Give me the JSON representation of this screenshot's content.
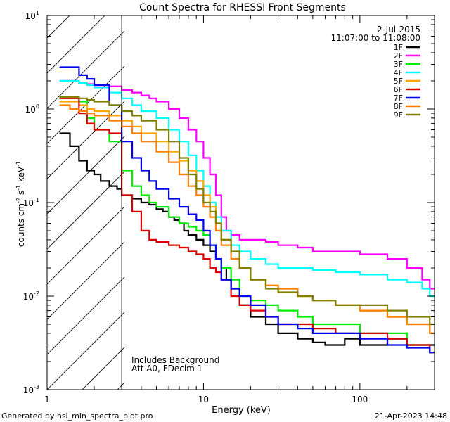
{
  "chart_data": {
    "type": "line",
    "title": "Count Spectra for RHESSI Front Segments",
    "xlabel": "Energy (keV)",
    "ylabel_base": "counts cm",
    "ylabel_units": [
      "-2",
      " s",
      "-1",
      " keV",
      "-1"
    ],
    "x_scale": "log",
    "y_scale": "log",
    "xlim": [
      1,
      300
    ],
    "ylim": [
      0.001,
      10
    ],
    "x_ticks": [
      {
        "value": 1,
        "label": "1"
      },
      {
        "value": 10,
        "label": "10"
      },
      {
        "value": 100,
        "label": "100"
      }
    ],
    "y_ticks": [
      {
        "value": 10,
        "base": "10",
        "exp": "1"
      },
      {
        "value": 1,
        "base": "10",
        "exp": "0"
      },
      {
        "value": 0.1,
        "base": "10",
        "exp": "-1"
      },
      {
        "value": 0.01,
        "base": "10",
        "exp": "-2"
      },
      {
        "value": 0.001,
        "base": "10",
        "exp": "-3"
      }
    ],
    "hatched_region": {
      "x_from": 1,
      "x_to": 3,
      "meaning": "excluded low energy"
    },
    "date": "2-Jul-2015",
    "time_range": "11:07:00 to 11:08:00",
    "annotations": [
      "Includes Background",
      "Att A0, FDecim 1"
    ],
    "footer_left": "Generated by hsi_min_spectra_plot.pro",
    "footer_right": "21-Apr-2023 14:48",
    "series": [
      {
        "name": "1F",
        "color": "#000000",
        "points": [
          [
            1.2,
            0.55
          ],
          [
            1.4,
            0.4
          ],
          [
            1.6,
            0.28
          ],
          [
            1.8,
            0.22
          ],
          [
            2.0,
            0.2
          ],
          [
            2.2,
            0.17
          ],
          [
            2.5,
            0.15
          ],
          [
            2.8,
            0.14
          ],
          [
            3.0,
            0.12
          ],
          [
            3.5,
            0.11
          ],
          [
            4,
            0.1
          ],
          [
            4.5,
            0.095
          ],
          [
            5,
            0.085
          ],
          [
            5.5,
            0.08
          ],
          [
            6,
            0.07
          ],
          [
            6.5,
            0.065
          ],
          [
            7,
            0.06
          ],
          [
            7.5,
            0.05
          ],
          [
            8,
            0.045
          ],
          [
            9,
            0.04
          ],
          [
            10,
            0.035
          ],
          [
            11,
            0.03
          ],
          [
            12,
            0.025
          ],
          [
            13,
            0.02
          ],
          [
            14,
            0.015
          ],
          [
            15,
            0.012
          ],
          [
            17,
            0.008
          ],
          [
            20,
            0.006
          ],
          [
            25,
            0.005
          ],
          [
            30,
            0.004
          ],
          [
            40,
            0.0035
          ],
          [
            50,
            0.0032
          ],
          [
            60,
            0.003
          ],
          [
            80,
            0.0035
          ],
          [
            100,
            0.003
          ],
          [
            150,
            0.0035
          ],
          [
            200,
            0.003
          ],
          [
            280,
            0.003
          ]
        ]
      },
      {
        "name": "2F",
        "color": "#ff00ff",
        "points": [
          [
            1.2,
            2.0
          ],
          [
            1.4,
            2.0
          ],
          [
            1.6,
            1.9
          ],
          [
            1.8,
            1.85
          ],
          [
            2.0,
            1.8
          ],
          [
            2.5,
            1.75
          ],
          [
            3.0,
            1.6
          ],
          [
            3.5,
            1.5
          ],
          [
            4,
            1.4
          ],
          [
            4.5,
            1.3
          ],
          [
            5,
            1.2
          ],
          [
            6,
            1.0
          ],
          [
            7,
            0.8
          ],
          [
            8,
            0.6
          ],
          [
            9,
            0.45
          ],
          [
            10,
            0.3
          ],
          [
            11,
            0.2
          ],
          [
            12,
            0.12
          ],
          [
            13,
            0.07
          ],
          [
            14,
            0.05
          ],
          [
            15,
            0.045
          ],
          [
            17,
            0.04
          ],
          [
            20,
            0.04
          ],
          [
            25,
            0.038
          ],
          [
            30,
            0.035
          ],
          [
            40,
            0.033
          ],
          [
            50,
            0.03
          ],
          [
            70,
            0.03
          ],
          [
            100,
            0.028
          ],
          [
            150,
            0.025
          ],
          [
            200,
            0.02
          ],
          [
            250,
            0.015
          ],
          [
            280,
            0.012
          ]
        ]
      },
      {
        "name": "3F",
        "color": "#00ee00",
        "points": [
          [
            1.2,
            1.3
          ],
          [
            1.4,
            1.3
          ],
          [
            1.6,
            1.2
          ],
          [
            1.8,
            0.8
          ],
          [
            2.0,
            0.6
          ],
          [
            2.5,
            0.45
          ],
          [
            3.0,
            0.22
          ],
          [
            3.5,
            0.15
          ],
          [
            4,
            0.12
          ],
          [
            4.5,
            0.1
          ],
          [
            5,
            0.09
          ],
          [
            6,
            0.07
          ],
          [
            7,
            0.06
          ],
          [
            8,
            0.055
          ],
          [
            9,
            0.05
          ],
          [
            10,
            0.045
          ],
          [
            11,
            0.035
          ],
          [
            12,
            0.025
          ],
          [
            13,
            0.02
          ],
          [
            15,
            0.015
          ],
          [
            17,
            0.01
          ],
          [
            20,
            0.009
          ],
          [
            25,
            0.008
          ],
          [
            30,
            0.007
          ],
          [
            40,
            0.006
          ],
          [
            50,
            0.005
          ],
          [
            70,
            0.005
          ],
          [
            100,
            0.004
          ],
          [
            150,
            0.004
          ],
          [
            200,
            0.003
          ],
          [
            280,
            0.0025
          ]
        ]
      },
      {
        "name": "4F",
        "color": "#00ffff",
        "points": [
          [
            1.2,
            2.0
          ],
          [
            1.4,
            2.0
          ],
          [
            1.6,
            1.9
          ],
          [
            1.8,
            1.8
          ],
          [
            2.0,
            1.7
          ],
          [
            2.5,
            1.5
          ],
          [
            3.0,
            1.3
          ],
          [
            3.5,
            1.1
          ],
          [
            4,
            0.95
          ],
          [
            5,
            0.8
          ],
          [
            6,
            0.6
          ],
          [
            7,
            0.45
          ],
          [
            8,
            0.32
          ],
          [
            9,
            0.22
          ],
          [
            10,
            0.15
          ],
          [
            11,
            0.1
          ],
          [
            12,
            0.07
          ],
          [
            13,
            0.05
          ],
          [
            15,
            0.035
          ],
          [
            17,
            0.03
          ],
          [
            20,
            0.025
          ],
          [
            25,
            0.022
          ],
          [
            30,
            0.02
          ],
          [
            40,
            0.02
          ],
          [
            50,
            0.019
          ],
          [
            70,
            0.018
          ],
          [
            100,
            0.017
          ],
          [
            150,
            0.015
          ],
          [
            200,
            0.014
          ],
          [
            250,
            0.012
          ],
          [
            280,
            0.01
          ]
        ]
      },
      {
        "name": "5F",
        "color": "#ffa500",
        "points": [
          [
            1.2,
            1.2
          ],
          [
            1.4,
            1.2
          ],
          [
            1.6,
            1.1
          ],
          [
            1.8,
            1.0
          ],
          [
            2.0,
            0.95
          ],
          [
            2.5,
            0.85
          ],
          [
            3.0,
            0.75
          ],
          [
            3.5,
            0.65
          ],
          [
            4,
            0.55
          ],
          [
            5,
            0.45
          ],
          [
            6,
            0.35
          ],
          [
            7,
            0.28
          ],
          [
            8,
            0.22
          ],
          [
            9,
            0.17
          ],
          [
            10,
            0.12
          ],
          [
            11,
            0.09
          ],
          [
            12,
            0.06
          ],
          [
            13,
            0.04
          ],
          [
            15,
            0.03
          ],
          [
            17,
            0.02
          ],
          [
            20,
            0.015
          ],
          [
            25,
            0.013
          ],
          [
            30,
            0.012
          ],
          [
            40,
            0.01
          ],
          [
            50,
            0.009
          ],
          [
            70,
            0.008
          ],
          [
            100,
            0.007
          ],
          [
            150,
            0.006
          ],
          [
            200,
            0.005
          ],
          [
            280,
            0.004
          ]
        ]
      },
      {
        "name": "6F",
        "color": "#dd0000",
        "points": [
          [
            1.2,
            1.3
          ],
          [
            1.4,
            1.3
          ],
          [
            1.6,
            0.9
          ],
          [
            1.8,
            0.7
          ],
          [
            2.0,
            0.6
          ],
          [
            2.5,
            0.55
          ],
          [
            3.0,
            0.12
          ],
          [
            3.5,
            0.08
          ],
          [
            4,
            0.05
          ],
          [
            4.5,
            0.04
          ],
          [
            5,
            0.038
          ],
          [
            6,
            0.035
          ],
          [
            7,
            0.033
          ],
          [
            8,
            0.03
          ],
          [
            9,
            0.028
          ],
          [
            10,
            0.025
          ],
          [
            11,
            0.02
          ],
          [
            12,
            0.018
          ],
          [
            13,
            0.015
          ],
          [
            15,
            0.01
          ],
          [
            17,
            0.008
          ],
          [
            20,
            0.007
          ],
          [
            25,
            0.006
          ],
          [
            30,
            0.005
          ],
          [
            40,
            0.005
          ],
          [
            50,
            0.0045
          ],
          [
            70,
            0.004
          ],
          [
            100,
            0.004
          ],
          [
            150,
            0.0035
          ],
          [
            200,
            0.003
          ],
          [
            280,
            0.0025
          ]
        ]
      },
      {
        "name": "7F",
        "color": "#0000ee",
        "points": [
          [
            1.2,
            2.8
          ],
          [
            1.4,
            2.8
          ],
          [
            1.6,
            2.3
          ],
          [
            1.8,
            2.1
          ],
          [
            2.0,
            1.8
          ],
          [
            2.5,
            1.1
          ],
          [
            3.0,
            0.45
          ],
          [
            3.5,
            0.3
          ],
          [
            4,
            0.22
          ],
          [
            4.5,
            0.17
          ],
          [
            5,
            0.14
          ],
          [
            6,
            0.11
          ],
          [
            7,
            0.09
          ],
          [
            8,
            0.075
          ],
          [
            9,
            0.065
          ],
          [
            10,
            0.05
          ],
          [
            11,
            0.035
          ],
          [
            12,
            0.025
          ],
          [
            13,
            0.015
          ],
          [
            15,
            0.012
          ],
          [
            17,
            0.01
          ],
          [
            20,
            0.008
          ],
          [
            25,
            0.006
          ],
          [
            30,
            0.005
          ],
          [
            40,
            0.0045
          ],
          [
            50,
            0.004
          ],
          [
            70,
            0.004
          ],
          [
            100,
            0.0035
          ],
          [
            150,
            0.003
          ],
          [
            200,
            0.0028
          ],
          [
            280,
            0.0025
          ]
        ]
      },
      {
        "name": "8F",
        "color": "#ff8000",
        "points": [
          [
            1.2,
            1.1
          ],
          [
            1.4,
            1.0
          ],
          [
            1.6,
            0.95
          ],
          [
            1.8,
            0.9
          ],
          [
            2.0,
            0.85
          ],
          [
            2.5,
            0.75
          ],
          [
            3.0,
            0.65
          ],
          [
            3.5,
            0.55
          ],
          [
            4,
            0.45
          ],
          [
            5,
            0.35
          ],
          [
            6,
            0.27
          ],
          [
            7,
            0.2
          ],
          [
            8,
            0.15
          ],
          [
            9,
            0.12
          ],
          [
            10,
            0.09
          ],
          [
            11,
            0.07
          ],
          [
            12,
            0.05
          ],
          [
            13,
            0.035
          ],
          [
            15,
            0.025
          ],
          [
            17,
            0.02
          ],
          [
            20,
            0.015
          ],
          [
            25,
            0.013
          ],
          [
            30,
            0.012
          ],
          [
            40,
            0.01
          ],
          [
            50,
            0.009
          ],
          [
            70,
            0.008
          ],
          [
            100,
            0.007
          ],
          [
            150,
            0.006
          ],
          [
            200,
            0.005
          ],
          [
            280,
            0.004
          ]
        ]
      },
      {
        "name": "9F",
        "color": "#808000",
        "points": [
          [
            1.2,
            1.35
          ],
          [
            1.4,
            1.35
          ],
          [
            1.6,
            1.3
          ],
          [
            1.8,
            1.25
          ],
          [
            2.0,
            1.2
          ],
          [
            2.5,
            1.1
          ],
          [
            3.0,
            0.95
          ],
          [
            3.5,
            0.85
          ],
          [
            4,
            0.75
          ],
          [
            5,
            0.6
          ],
          [
            6,
            0.45
          ],
          [
            7,
            0.3
          ],
          [
            8,
            0.2
          ],
          [
            9,
            0.14
          ],
          [
            10,
            0.1
          ],
          [
            11,
            0.08
          ],
          [
            12,
            0.06
          ],
          [
            13,
            0.04
          ],
          [
            15,
            0.03
          ],
          [
            17,
            0.02
          ],
          [
            20,
            0.015
          ],
          [
            25,
            0.012
          ],
          [
            30,
            0.011
          ],
          [
            40,
            0.01
          ],
          [
            50,
            0.009
          ],
          [
            70,
            0.008
          ],
          [
            100,
            0.008
          ],
          [
            150,
            0.007
          ],
          [
            200,
            0.006
          ],
          [
            280,
            0.005
          ]
        ]
      }
    ]
  }
}
